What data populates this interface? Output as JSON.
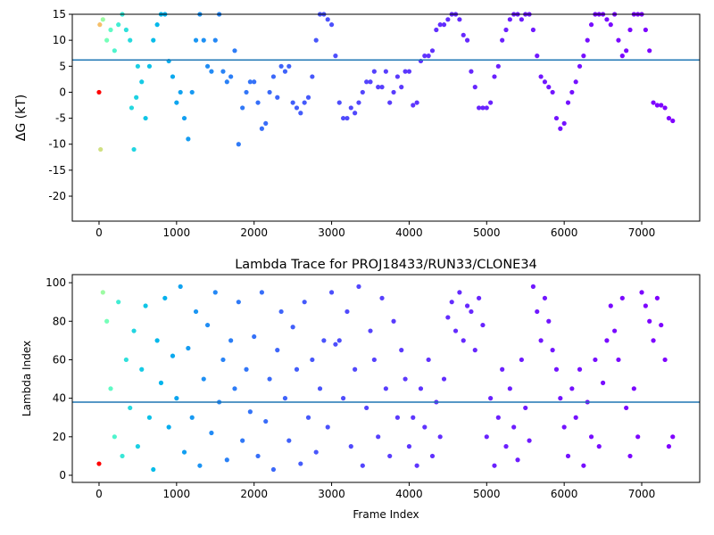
{
  "chart_data": [
    {
      "type": "scatter",
      "y_label": "ΔG (kT)",
      "xlim": [
        -345,
        7748
      ],
      "ylim": [
        -24.8,
        15
      ],
      "xticks": [
        0,
        1000,
        2000,
        3000,
        4000,
        5000,
        6000,
        7000
      ],
      "yticks": [
        -20,
        -15,
        -10,
        -5,
        0,
        5,
        10,
        15
      ],
      "colormap": "rainbow",
      "color_by": "x",
      "color_scale": "log",
      "color_reversed": true,
      "hline": {
        "value": 6.2,
        "color": "#1f77b4"
      },
      "x": [
        0,
        10,
        20,
        50,
        100,
        150,
        200,
        250,
        300,
        350,
        400,
        420,
        450,
        480,
        500,
        550,
        600,
        650,
        700,
        750,
        800,
        850,
        900,
        950,
        1000,
        1050,
        1100,
        1150,
        1200,
        1250,
        1300,
        1350,
        1400,
        1450,
        1500,
        1550,
        1600,
        1650,
        1700,
        1750,
        1800,
        1850,
        1900,
        1950,
        2000,
        2050,
        2100,
        2150,
        2200,
        2250,
        2300,
        2350,
        2400,
        2450,
        2500,
        2550,
        2600,
        2650,
        2700,
        2750,
        2800,
        2850,
        2900,
        2950,
        3000,
        3050,
        3100,
        3150,
        3200,
        3250,
        3300,
        3350,
        3400,
        3450,
        3500,
        3550,
        3600,
        3650,
        3700,
        3750,
        3800,
        3850,
        3900,
        3950,
        4000,
        4050,
        4100,
        4150,
        4200,
        4250,
        4300,
        4350,
        4400,
        4450,
        4500,
        4550,
        4600,
        4650,
        4700,
        4750,
        4800,
        4850,
        4900,
        4950,
        5000,
        5050,
        5100,
        5150,
        5200,
        5250,
        5300,
        5350,
        5400,
        5450,
        5500,
        5550,
        5600,
        5650,
        5700,
        5750,
        5800,
        5850,
        5900,
        5950,
        6000,
        6050,
        6100,
        6150,
        6200,
        6250,
        6300,
        6350,
        6400,
        6450,
        6500,
        6550,
        6600,
        6650,
        6700,
        6750,
        6800,
        6850,
        6900,
        6950,
        7000,
        7050,
        7100,
        7150,
        7200,
        7250,
        7300,
        7350,
        7400
      ],
      "y": [
        0,
        13,
        -11,
        14,
        10,
        12,
        8,
        13,
        15,
        12,
        10,
        -3,
        -11,
        -1,
        5,
        2,
        -5,
        5,
        10,
        13,
        15,
        15,
        6,
        3,
        -2,
        0,
        -5,
        -9,
        0,
        10,
        15,
        10,
        5,
        4,
        10,
        15,
        4,
        2,
        3,
        8,
        -10,
        -3,
        0,
        2,
        2,
        -2,
        -7,
        -6,
        0,
        3,
        -1,
        5,
        4,
        5,
        -2,
        -3,
        -4,
        -2,
        -1,
        3,
        10,
        15,
        15,
        14,
        13,
        7,
        -2,
        -5,
        -5,
        -3,
        -4,
        -2,
        0,
        2,
        2,
        4,
        1,
        1,
        4,
        -2,
        0,
        3,
        1,
        4,
        4,
        -2.5,
        -2,
        6,
        7,
        7,
        8,
        12,
        13,
        13,
        14,
        15,
        15,
        14,
        11,
        10,
        4,
        1,
        -3,
        -3,
        -3,
        -2,
        3,
        5,
        10,
        12,
        14,
        15,
        15,
        14,
        15,
        15,
        12,
        7,
        3,
        2,
        1,
        0,
        -5,
        -7,
        -6,
        -2,
        0,
        2,
        5,
        7,
        10,
        13,
        15,
        15,
        15,
        14,
        13,
        15,
        10,
        7,
        8,
        12,
        15,
        15,
        15,
        12,
        8,
        -2,
        -2.5,
        -2.5,
        -3,
        -5,
        -5.5
      ]
    },
    {
      "type": "scatter",
      "title": "Lambda Trace for PROJ18433/RUN33/CLONE34",
      "x_label": "Frame Index",
      "y_label": "Lambda Index",
      "xlim": [
        -345,
        7748
      ],
      "ylim": [
        -3.7,
        104.2
      ],
      "xticks": [
        0,
        1000,
        2000,
        3000,
        4000,
        5000,
        6000,
        7000
      ],
      "yticks": [
        0,
        20,
        40,
        60,
        80,
        100
      ],
      "colormap": "rainbow",
      "color_by": "x",
      "color_scale": "log",
      "color_reversed": true,
      "hline": {
        "value": 38,
        "color": "#1f77b4"
      },
      "x": [
        0,
        50,
        100,
        150,
        200,
        250,
        300,
        350,
        400,
        450,
        500,
        550,
        600,
        650,
        700,
        750,
        800,
        850,
        900,
        950,
        1000,
        1050,
        1100,
        1150,
        1200,
        1250,
        1300,
        1350,
        1400,
        1450,
        1500,
        1550,
        1600,
        1650,
        1700,
        1750,
        1800,
        1850,
        1900,
        1950,
        2000,
        2050,
        2100,
        2150,
        2200,
        2250,
        2300,
        2350,
        2400,
        2450,
        2500,
        2550,
        2600,
        2650,
        2700,
        2750,
        2800,
        2850,
        2900,
        2950,
        3000,
        3050,
        3100,
        3150,
        3200,
        3250,
        3300,
        3350,
        3400,
        3450,
        3500,
        3550,
        3600,
        3650,
        3700,
        3750,
        3800,
        3850,
        3900,
        3950,
        4000,
        4050,
        4100,
        4150,
        4200,
        4250,
        4300,
        4350,
        4400,
        4450,
        4500,
        4550,
        4600,
        4650,
        4700,
        4750,
        4800,
        4850,
        4900,
        4950,
        5000,
        5050,
        5100,
        5150,
        5200,
        5250,
        5300,
        5350,
        5400,
        5450,
        5500,
        5550,
        5600,
        5650,
        5700,
        5750,
        5800,
        5850,
        5900,
        5950,
        6000,
        6050,
        6100,
        6150,
        6200,
        6250,
        6300,
        6350,
        6400,
        6450,
        6500,
        6550,
        6600,
        6650,
        6700,
        6750,
        6800,
        6850,
        6900,
        6950,
        7000,
        7050,
        7100,
        7150,
        7200,
        7250,
        7300,
        7350,
        7400
      ],
      "y": [
        6,
        95,
        80,
        45,
        20,
        90,
        10,
        60,
        35,
        75,
        15,
        55,
        88,
        30,
        3,
        70,
        48,
        92,
        25,
        62,
        40,
        98,
        12,
        66,
        30,
        85,
        5,
        50,
        78,
        22,
        95,
        38,
        60,
        8,
        70,
        45,
        90,
        18,
        55,
        33,
        72,
        10,
        95,
        28,
        50,
        3,
        65,
        85,
        40,
        18,
        77,
        55,
        6,
        90,
        30,
        60,
        12,
        45,
        70,
        25,
        95,
        68,
        70,
        40,
        85,
        15,
        55,
        98,
        5,
        35,
        75,
        60,
        20,
        92,
        45,
        10,
        80,
        30,
        65,
        50,
        15,
        30,
        5,
        45,
        25,
        60,
        10,
        38,
        20,
        50,
        82,
        90,
        75,
        95,
        70,
        88,
        85,
        65,
        92,
        78,
        20,
        40,
        5,
        30,
        55,
        15,
        45,
        25,
        8,
        60,
        35,
        18,
        98,
        85,
        70,
        92,
        80,
        65,
        55,
        40,
        25,
        10,
        45,
        30,
        55,
        5,
        38,
        20,
        60,
        15,
        48,
        70,
        88,
        75,
        60,
        92,
        35,
        10,
        45,
        20,
        95,
        88,
        80,
        70,
        92,
        78,
        60,
        15,
        20
      ]
    }
  ]
}
